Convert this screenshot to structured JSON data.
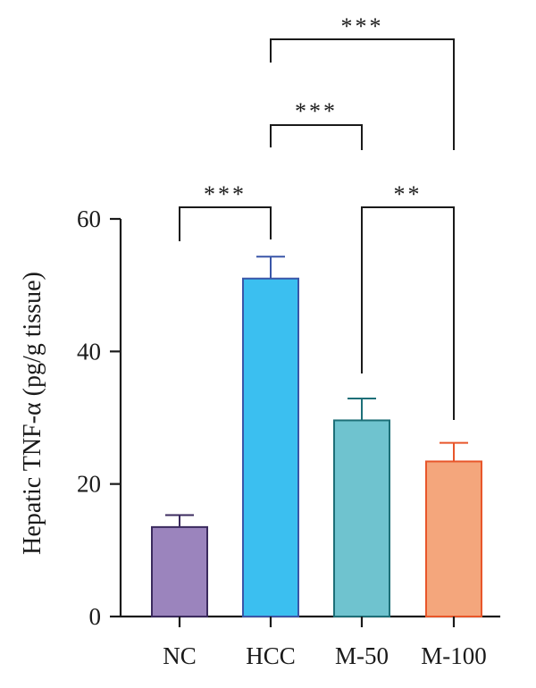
{
  "chart_data": {
    "type": "bar",
    "title": "",
    "xlabel": "",
    "ylabel": "Hepatic TNF-α (pg/g tissue)",
    "ylim": [
      0,
      60
    ],
    "yticks": [
      "0",
      "20",
      "40",
      "60"
    ],
    "categories": [
      "NC",
      "HCC",
      "M-50",
      "M-100"
    ],
    "values": [
      13.5,
      51.0,
      29.6,
      23.4
    ],
    "errors": [
      1.8,
      3.3,
      3.3,
      2.8
    ],
    "colors": {
      "fill": [
        "#9b84bd",
        "#3bbff0",
        "#6fc3cf",
        "#f4a67c"
      ],
      "stroke": [
        "#3b2a5e",
        "#3a56a8",
        "#1d6f78",
        "#e8562a"
      ]
    },
    "significance": [
      {
        "from": "NC",
        "to": "HCC",
        "label": "***"
      },
      {
        "from": "HCC",
        "to": "M-50",
        "label": "***"
      },
      {
        "from": "HCC",
        "to": "M-100",
        "label": "***"
      },
      {
        "from": "M-50",
        "to": "M-100",
        "label": "**"
      }
    ],
    "grid": false,
    "legend": "none"
  }
}
